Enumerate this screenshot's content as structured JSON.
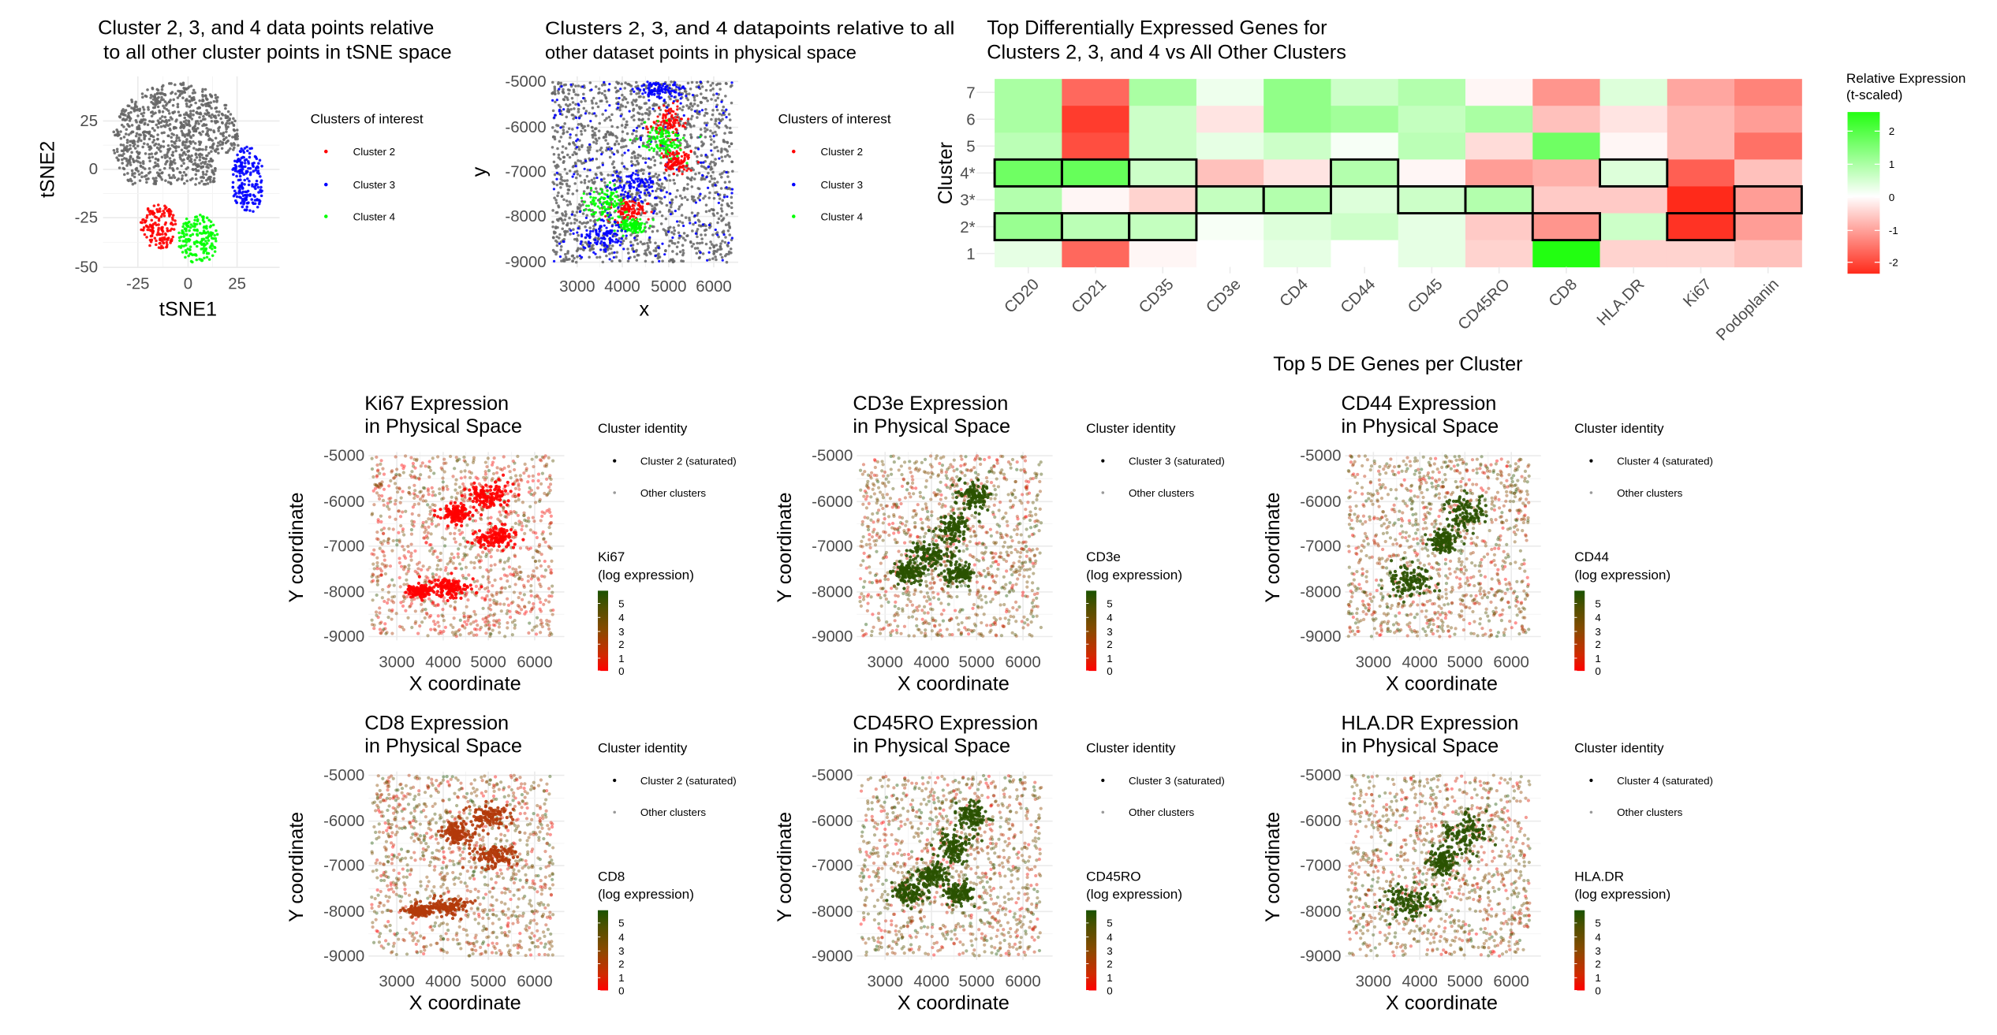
{
  "chart_data": [
    {
      "type": "scatter",
      "title": [
        "Cluster 2, 3, and 4 data points relative",
        " to all other cluster points in tSNE space"
      ],
      "xlabel": "tSNE1",
      "ylabel": "tSNE2",
      "xticks": [
        "-25",
        "0",
        "25"
      ],
      "yticks": [
        "25",
        "0",
        "-25",
        "-50"
      ],
      "xlim": [
        -42,
        46
      ],
      "ylim": [
        -50,
        48
      ],
      "grid": true,
      "legend": {
        "title": "Clusters of interest",
        "placement": "right",
        "items": [
          {
            "label": "Cluster 2",
            "color": "#ff0000"
          },
          {
            "label": "Cluster 3",
            "color": "#0000ff"
          },
          {
            "label": "Cluster 4",
            "color": "#00ff00"
          }
        ]
      },
      "other_color": "#666666"
    },
    {
      "type": "scatter",
      "title": [
        "Clusters 2, 3, and 4 datapoints relative to all",
        "other dataset points in physical space"
      ],
      "xlabel": "x",
      "ylabel": "y",
      "xticks": [
        "3000",
        "4000",
        "5000",
        "6000"
      ],
      "yticks": [
        "-5000",
        "-6000",
        "-7000",
        "-8000",
        "-9000"
      ],
      "xlim": [
        2450,
        6500
      ],
      "ylim": [
        -9000,
        -5000
      ],
      "grid": true,
      "legend": {
        "title": "Clusters of interest",
        "placement": "right",
        "items": [
          {
            "label": "Cluster 2",
            "color": "#ff0000"
          },
          {
            "label": "Cluster 3",
            "color": "#0000ff"
          },
          {
            "label": "Cluster 4",
            "color": "#00ff00"
          }
        ]
      },
      "other_color": "#666666"
    },
    {
      "type": "heatmap",
      "title": [
        "Top Differentially Expressed Genes for",
        "Clusters 2, 3, and 4 vs All Other Clusters"
      ],
      "xlabel": "Top 5 DE Genes per Cluster",
      "ylabel": "Cluster",
      "x": [
        "CD20",
        "CD21",
        "CD35",
        "CD3e",
        "CD4",
        "CD44",
        "CD45",
        "CD45RO",
        "CD8",
        "HLA.DR",
        "Ki67",
        "Podoplanin"
      ],
      "y": [
        "7",
        "6",
        "5",
        "4*",
        "3*",
        "2*",
        "1"
      ],
      "values": [
        [
          1.0,
          -1.7,
          1.0,
          0.2,
          1.3,
          0.6,
          0.9,
          -0.1,
          -1.2,
          0.4,
          -1.0,
          -1.4
        ],
        [
          1.0,
          -2.2,
          0.6,
          -0.3,
          1.3,
          1.1,
          0.7,
          1.0,
          -0.7,
          -0.3,
          -0.8,
          -1.1
        ],
        [
          0.8,
          -2.0,
          0.6,
          0.3,
          0.6,
          0.1,
          0.8,
          -0.4,
          1.7,
          -0.1,
          -0.8,
          -1.6
        ],
        [
          1.7,
          1.8,
          0.6,
          -0.7,
          -0.3,
          0.9,
          -0.1,
          -1.1,
          -0.9,
          0.4,
          -1.8,
          -0.7
        ],
        [
          0.9,
          -0.1,
          -0.5,
          0.7,
          0.9,
          0.4,
          0.6,
          0.9,
          -0.6,
          -0.6,
          -2.4,
          -1.1
        ],
        [
          1.2,
          0.8,
          0.7,
          0.1,
          0.4,
          0.6,
          0.3,
          -0.6,
          -1.2,
          0.6,
          -2.3,
          -1.1
        ],
        [
          0.3,
          -1.7,
          -0.1,
          0.0,
          0.3,
          0.0,
          0.3,
          -0.5,
          2.6,
          -0.5,
          -0.5,
          -0.7
        ]
      ],
      "highlighted": {
        "4*": [
          "CD20",
          "CD21",
          "CD35",
          "CD44",
          "HLA.DR"
        ],
        "3*": [
          "CD3e",
          "CD4",
          "CD45",
          "CD45RO",
          "Podoplanin"
        ],
        "2*": [
          "CD20",
          "CD21",
          "CD35",
          "CD8",
          "Ki67"
        ]
      },
      "legend": {
        "title": [
          "Relative Expression",
          "(t-scaled)"
        ],
        "ticks": [
          "2",
          "1",
          "0",
          "-1",
          "-2"
        ],
        "range": [
          -2.4,
          2.6
        ],
        "low_color": "#ff2a1a",
        "mid_color": "#ffffff",
        "high_color": "#22ff11"
      }
    },
    {
      "type": "scatter",
      "gene": "Ki67",
      "cluster": "2",
      "title": [
        "Ki67 Expression",
        " in Physical Space"
      ],
      "xlabel": "X coordinate",
      "ylabel": "Y coordinate",
      "xticks": [
        "3000",
        "4000",
        "5000",
        "6000"
      ],
      "yticks": [
        "-5000",
        "-6000",
        "-7000",
        "-8000",
        "-9000"
      ],
      "legend": {
        "title": "Cluster identity",
        "items": [
          "Cluster 2 (saturated)",
          "Other clusters"
        ],
        "color_title": [
          "Ki67",
          "(log expression)"
        ],
        "color_ticks": [
          "5",
          "4",
          "3",
          "2",
          "1",
          "0"
        ]
      },
      "highlight_color": "#ff0000"
    },
    {
      "type": "scatter",
      "gene": "CD3e",
      "cluster": "3",
      "title": [
        "CD3e Expression",
        "in Physical Space"
      ],
      "xlabel": "X coordinate",
      "ylabel": "Y coordinate",
      "xticks": [
        "3000",
        "4000",
        "5000",
        "6000"
      ],
      "yticks": [
        "-5000",
        "-6000",
        "-7000",
        "-8000",
        "-9000"
      ],
      "legend": {
        "title": "Cluster identity",
        "items": [
          "Cluster 3 (saturated)",
          "Other clusters"
        ],
        "color_title": [
          "CD3e",
          "(log expression)"
        ],
        "color_ticks": [
          "5",
          "4",
          "3",
          "2",
          "1",
          "0"
        ]
      },
      "highlight_color": "#2a5200"
    },
    {
      "type": "scatter",
      "gene": "CD44",
      "cluster": "4",
      "title": [
        "CD44 Expression",
        "in Physical Space"
      ],
      "xlabel": "X coordinate",
      "ylabel": "Y coordinate",
      "xticks": [
        "3000",
        "4000",
        "5000",
        "6000"
      ],
      "yticks": [
        "-5000",
        "-6000",
        "-7000",
        "-8000",
        "-9000"
      ],
      "legend": {
        "title": "Cluster identity",
        "items": [
          "Cluster 4 (saturated)",
          "Other clusters"
        ],
        "color_title": [
          "CD44",
          "(log expression)"
        ],
        "color_ticks": [
          "5",
          "4",
          "3",
          "2",
          "1",
          "0"
        ]
      },
      "highlight_color": "#2a5200"
    },
    {
      "type": "scatter",
      "gene": "CD8",
      "cluster": "2",
      "title": [
        "CD8 Expression",
        " in Physical Space"
      ],
      "xlabel": "X coordinate",
      "ylabel": "Y coordinate",
      "xticks": [
        "3000",
        "4000",
        "5000",
        "6000"
      ],
      "yticks": [
        "-5000",
        "-6000",
        "-7000",
        "-8000",
        "-9000"
      ],
      "legend": {
        "title": "Cluster identity",
        "items": [
          "Cluster 2 (saturated)",
          "Other clusters"
        ],
        "color_title": [
          "CD8",
          "(log expression)"
        ],
        "color_ticks": [
          "5",
          "4",
          "3",
          "2",
          "1",
          "0"
        ]
      },
      "highlight_color": "#b33a0a"
    },
    {
      "type": "scatter",
      "gene": "CD45RO",
      "cluster": "3",
      "title": [
        "CD45RO Expression",
        "in Physical Space"
      ],
      "xlabel": "X coordinate",
      "ylabel": "Y coordinate",
      "xticks": [
        "3000",
        "4000",
        "5000",
        "6000"
      ],
      "yticks": [
        "-5000",
        "-6000",
        "-7000",
        "-8000",
        "-9000"
      ],
      "legend": {
        "title": "Cluster identity",
        "items": [
          "Cluster 3 (saturated)",
          "Other clusters"
        ],
        "color_title": [
          "CD45RO",
          "(log expression)"
        ],
        "color_ticks": [
          "5",
          "4",
          "3",
          "2",
          "1",
          "0"
        ]
      },
      "highlight_color": "#2a5200"
    },
    {
      "type": "scatter",
      "gene": "HLA.DR",
      "cluster": "4",
      "title": [
        "HLA.DR Expression",
        "in Physical Space"
      ],
      "xlabel": "X coordinate",
      "ylabel": "Y coordinate",
      "xticks": [
        "3000",
        "4000",
        "5000",
        "6000"
      ],
      "yticks": [
        "-5000",
        "-6000",
        "-7000",
        "-8000",
        "-9000"
      ],
      "legend": {
        "title": "Cluster identity",
        "items": [
          "Cluster 4 (saturated)",
          "Other clusters"
        ],
        "color_title": [
          "HLA.DR",
          "(log expression)"
        ],
        "color_ticks": [
          "5",
          "4",
          "3",
          "2",
          "1",
          "0"
        ]
      },
      "highlight_color": "#2a5200"
    }
  ]
}
